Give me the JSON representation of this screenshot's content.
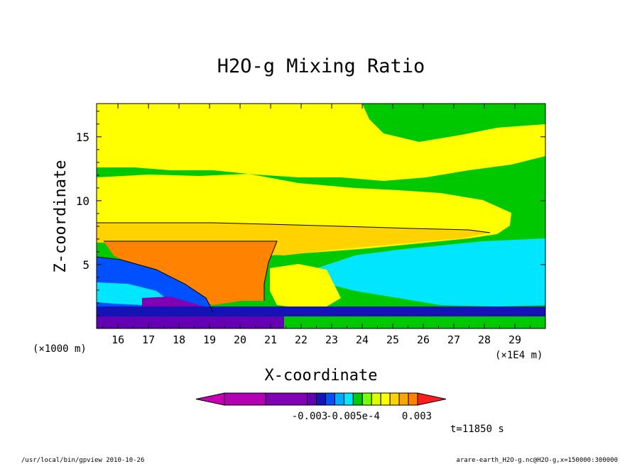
{
  "chart_data": {
    "type": "heatmap",
    "title": "H2O-g Mixing Ratio",
    "xlabel": "X-coordinate",
    "ylabel": "Z-coordinate",
    "x_unit_left": "(×1000 m)",
    "x_unit_right": "(×1E4 m)",
    "xlim": [
      15.3,
      30.0
    ],
    "ylim": [
      0.0,
      17.6
    ],
    "x_ticks": [
      "16",
      "17",
      "18",
      "19",
      "20",
      "21",
      "22",
      "23",
      "24",
      "25",
      "26",
      "27",
      "28",
      "29"
    ],
    "y_ticks": [
      "5",
      "10",
      "15"
    ],
    "colorbar": {
      "colors": [
        "#c800b4",
        "#b400b4",
        "#8200b4",
        "#6400b4",
        "#1414b4",
        "#0050ff",
        "#00aaff",
        "#00e6ff",
        "#00c800",
        "#78ff00",
        "#dcff00",
        "#ffff00",
        "#ffd200",
        "#ffa500",
        "#ff8200",
        "#ff1e1e"
      ],
      "tick_labels": [
        "-0.003",
        "-0.005e-4",
        "0.003"
      ],
      "extend": "both"
    },
    "grid": false,
    "legend": "colorbar-bottom"
  },
  "annotation": "t=11850 s",
  "footer": {
    "left": "/usr/local/bin/gpview  2010-10-26",
    "right": "arare-earth_H2O-g.nc@H2O-g,x=150000:300000"
  }
}
